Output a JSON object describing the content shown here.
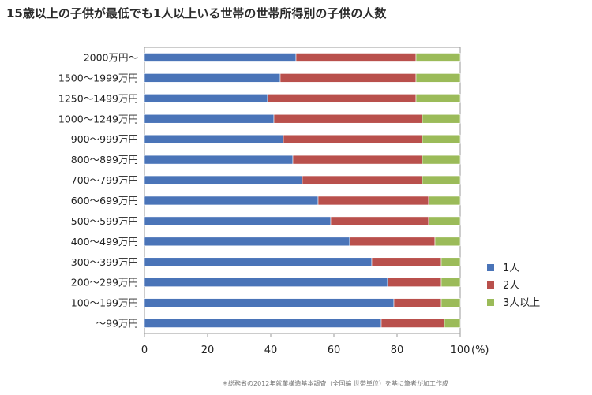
{
  "colors": {
    "one_child": "#4a74b8",
    "two_children": "#b9504c",
    "three_plus": "#9bbb59",
    "plot_border": "#9a9a9a",
    "gridline": "#bdbdbd"
  },
  "chart_data": {
    "type": "bar",
    "orientation": "horizontal",
    "stacked": true,
    "title": "15歳以上の子供が最低でも1人以上いる世帯の世帯所得別の子供の人数",
    "categories": [
      "2000万円～",
      "1500～1999万円",
      "1250～1499万円",
      "1000～1249万円",
      "900～999万円",
      "800～899万円",
      "700～799万円",
      "600～699万円",
      "500～599万円",
      "400～499万円",
      "300～399万円",
      "200～299万円",
      "100～199万円",
      "～99万円"
    ],
    "series": [
      {
        "name": "1人",
        "color": "#4a74b8",
        "values": [
          48,
          43,
          39,
          41,
          44,
          47,
          50,
          55,
          59,
          65,
          72,
          77,
          79,
          75
        ]
      },
      {
        "name": "2人",
        "color": "#b9504c",
        "values": [
          38,
          43,
          47,
          47,
          44,
          41,
          38,
          35,
          31,
          27,
          22,
          17,
          15,
          20
        ]
      },
      {
        "name": "3人以上",
        "color": "#9bbb59",
        "values": [
          14,
          14,
          14,
          12,
          12,
          12,
          12,
          10,
          10,
          8,
          6,
          6,
          6,
          5
        ]
      }
    ],
    "xlim": [
      0,
      100
    ],
    "xticks": [
      0,
      20,
      40,
      60,
      80,
      100
    ],
    "xunit": "(%)",
    "legend_position": "right",
    "source_note": "＊総務省の2012年就業構造基本調査（全国編 世帯単位）を基に筆者が加工作成"
  }
}
